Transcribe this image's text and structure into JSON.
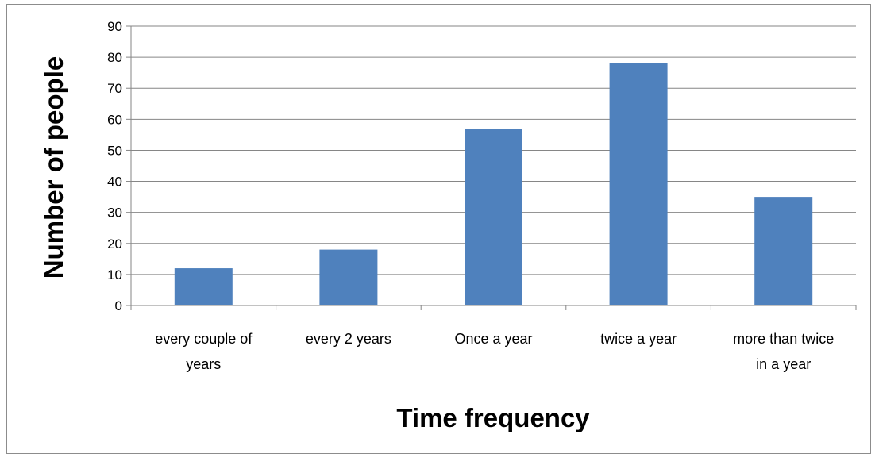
{
  "chart_data": {
    "type": "bar",
    "categories": [
      [
        "every couple of",
        "years"
      ],
      [
        "every 2 years"
      ],
      [
        "Once a year"
      ],
      [
        "twice a year"
      ],
      [
        "more than twice",
        "in a year"
      ]
    ],
    "values": [
      12,
      18,
      57,
      78,
      35
    ],
    "title": "",
    "xlabel": "Time frequency",
    "ylabel": "Number of people",
    "ylim": [
      0,
      90
    ],
    "yticks": [
      "0",
      "10",
      "20",
      "30",
      "40",
      "50",
      "60",
      "70",
      "80",
      "90"
    ],
    "grid": true,
    "legend": "none",
    "bar_color": "#4f81bd",
    "grid_color": "#868686"
  }
}
